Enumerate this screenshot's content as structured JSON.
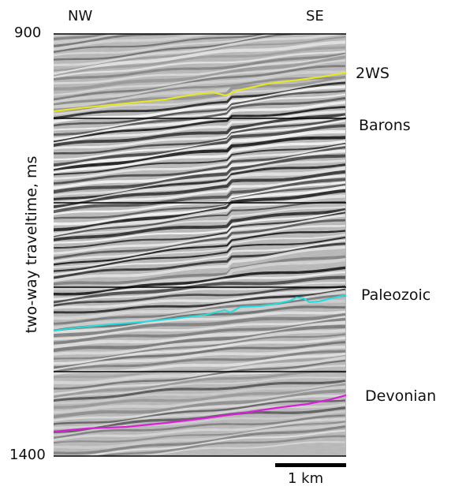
{
  "directions": {
    "left": "NW",
    "right": "SE"
  },
  "y_axis": {
    "title": "two-way traveltime, ms",
    "top": "900",
    "bottom": "1400"
  },
  "horizons": [
    {
      "name": "2WS",
      "color": "#e8e81a"
    },
    {
      "name": "Barons",
      "color": "#000000"
    },
    {
      "name": "Paleozoic",
      "color": "#22dede"
    },
    {
      "name": "Devonian",
      "color": "#d81fd8"
    }
  ],
  "scale_bar": {
    "label": "1 km"
  }
}
